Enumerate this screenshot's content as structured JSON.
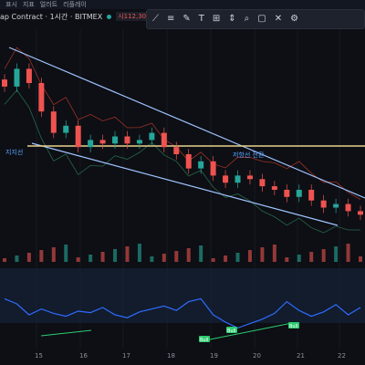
{
  "topbar": {
    "items": [
      "표시",
      "지표",
      "얼러트",
      "리플레이"
    ]
  },
  "legend": {
    "symbol": "ap Contract · 1시간 · BITMEX",
    "price_label": "시112,306.0",
    "price_suffix": "고"
  },
  "toolbar": {
    "tools": [
      "trendline-icon",
      "fib-icon",
      "brush-icon",
      "text-icon",
      "pattern-icon",
      "measure-icon",
      "zoom-icon",
      "lock-icon",
      "trash-icon",
      "settings-icon",
      "more-icon"
    ]
  },
  "annotations": {
    "support_label": "지지선",
    "resistance_label": "저항선 전환",
    "bull_tag": "Bull"
  },
  "colors": {
    "up": "#26a69a",
    "down": "#ef5350",
    "trend": "#9fc3ff",
    "horizontal": "#e8d28c",
    "rsi": "#2f6bff",
    "bull": "#2ecc71"
  },
  "xaxis": {
    "ticks": [
      "15",
      "16",
      "17",
      "18",
      "19",
      "20",
      "21",
      "22"
    ]
  },
  "chart_data": {
    "type": "candlestick",
    "series_close": [
      112.9,
      113.4,
      113.0,
      112.2,
      111.6,
      111.8,
      111.2,
      111.4,
      111.3,
      111.5,
      111.3,
      111.4,
      111.6,
      111.2,
      111.0,
      110.6,
      110.8,
      110.4,
      110.2,
      110.4,
      110.3,
      110.1,
      110.0,
      109.8,
      110.0,
      109.7,
      109.5,
      109.6,
      109.4,
      109.3
    ],
    "rsi": [
      62,
      55,
      40,
      48,
      42,
      38,
      45,
      43,
      50,
      40,
      36,
      44,
      48,
      52,
      46,
      58,
      62,
      40,
      30,
      22,
      28,
      34,
      42,
      58,
      46,
      38,
      44,
      54,
      40,
      50
    ]
  }
}
